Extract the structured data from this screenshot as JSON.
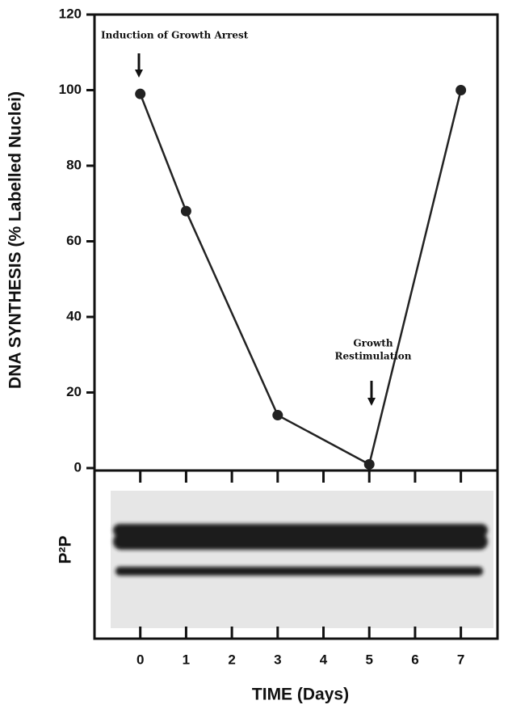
{
  "chart_data": {
    "type": "line",
    "ylabel": "DNA SYNTHESIS (% Labelled Nuclei)",
    "xlabel": "TIME (Days)",
    "blot_label": "P²P",
    "x": [
      0,
      1,
      3,
      5,
      7
    ],
    "values": [
      99,
      68,
      14,
      1,
      100
    ],
    "color": "#222222",
    "xlim": [
      -1,
      7.8
    ],
    "xticks": [
      0,
      1,
      2,
      3,
      4,
      5,
      6,
      7
    ],
    "ylim": [
      0,
      120
    ],
    "yticks": [
      0,
      20,
      40,
      60,
      80,
      100,
      120
    ],
    "annotations": [
      {
        "lines": [
          "Induction of Growth Arrest"
        ]
      },
      {
        "lines": [
          "Growth",
          "Restimulation"
        ]
      }
    ]
  }
}
